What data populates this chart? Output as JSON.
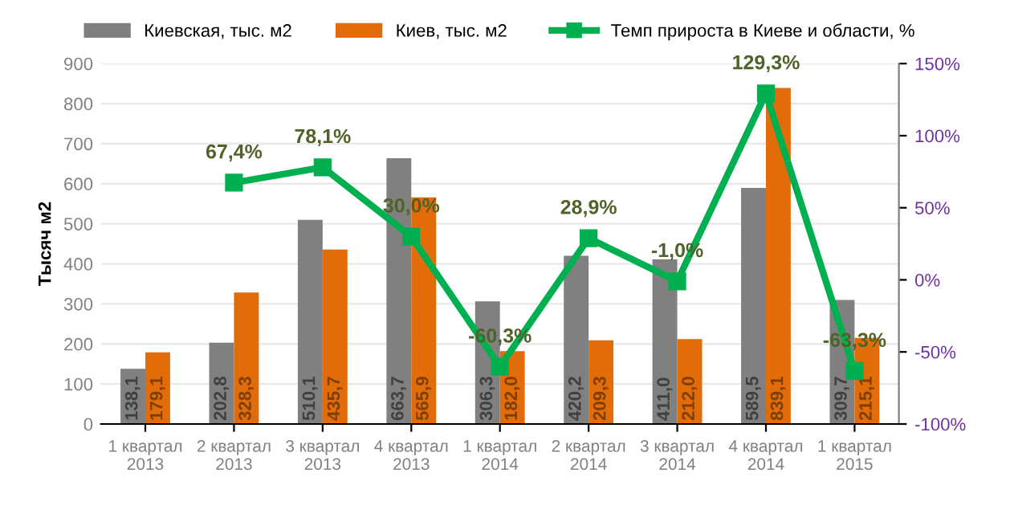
{
  "chart_data": {
    "type": "bar",
    "ylabel": "Тысяч м2",
    "categories": [
      "1 квартал\n2013",
      "2 квартал\n2013",
      "3 квартал\n2013",
      "4 квартал\n2013",
      "1 квартал\n2014",
      "2 квартал\n2014",
      "3 квартал\n2014",
      "4 квартал\n2014",
      "1 квартал\n2015"
    ],
    "series": [
      {
        "name": "Киевская, тыс. м2",
        "color": "#808080",
        "values": [
          138.1,
          202.8,
          510.1,
          663.7,
          306.3,
          420.2,
          411.0,
          589.5,
          309.7
        ],
        "value_labels": [
          "138,1",
          "202,8",
          "510,1",
          "663,7",
          "306,3",
          "420,2",
          "411,0",
          "589,5",
          "309,7"
        ]
      },
      {
        "name": "Киев, тыс. м2",
        "color": "#e36c0a",
        "values": [
          179.1,
          328.3,
          435.7,
          565.9,
          182.0,
          209.3,
          212.0,
          839.1,
          215.1
        ],
        "value_labels": [
          "179,1",
          "328,3",
          "435,7",
          "565,9",
          "182,0",
          "209,3",
          "212,0",
          "839,1",
          "215,1"
        ]
      },
      {
        "name": "Темп прироста в Киеве и области, %",
        "type": "line",
        "axis": "y2",
        "color": "#00b050",
        "marker": "square",
        "values": [
          null,
          67.4,
          78.1,
          30.0,
          -60.3,
          28.9,
          -1.0,
          129.3,
          -63.3
        ],
        "value_labels": [
          null,
          "67,4%",
          "78,1%",
          "30,0%",
          "-60,3%",
          "28,9%",
          "-1,0%",
          "129,3%",
          "-63,3%"
        ]
      }
    ],
    "ylim": [
      0,
      900
    ],
    "yticks": [
      0,
      100,
      200,
      300,
      400,
      500,
      600,
      700,
      800,
      900
    ],
    "y2lim": [
      -100,
      150
    ],
    "y2ticks": [
      {
        "value": -100,
        "label": "-100%"
      },
      {
        "value": -50,
        "label": "-50%"
      },
      {
        "value": 0,
        "label": "0%"
      },
      {
        "value": 50,
        "label": "50%"
      },
      {
        "value": 100,
        "label": "100%"
      },
      {
        "value": 150,
        "label": "150%"
      }
    ],
    "grid": "y",
    "legend": "top"
  }
}
